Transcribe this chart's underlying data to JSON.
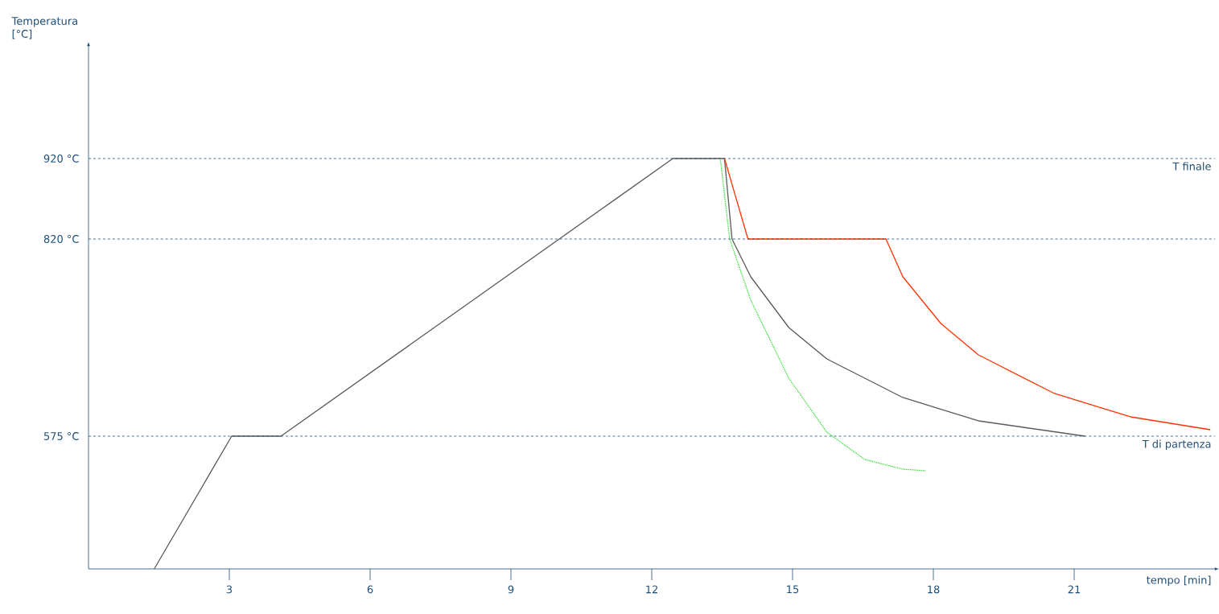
{
  "chart_data": {
    "type": "line",
    "xlabel": "tempo [min]",
    "ylabel": "Temperatura [°C]",
    "xlim": [
      0,
      24
    ],
    "ylim": [
      410,
      1060
    ],
    "xticks": [
      3,
      6,
      9,
      12,
      15,
      18,
      21
    ],
    "yticks": [
      {
        "value": 575,
        "label": "575 °C"
      },
      {
        "value": 820,
        "label": "820 °C"
      },
      {
        "value": 920,
        "label": "920 °C"
      }
    ],
    "ref_lines": [
      {
        "axis": "y",
        "value": 920,
        "label": "T finale",
        "color": "#1f4e79",
        "line_style": "dashed"
      },
      {
        "axis": "y",
        "value": 820,
        "label": null,
        "color": "#1f4e79",
        "line_style": "dashed"
      },
      {
        "axis": "y",
        "value": 575,
        "label": "T di partenza",
        "color": "#1f4e79",
        "line_style": "dashed"
      }
    ],
    "series": [
      {
        "color": "#595959",
        "line_style": "solid",
        "x": [
          1.4,
          3.05,
          4.1,
          12.45,
          13.55,
          13.71,
          14.11,
          14.92,
          15.73,
          17.35,
          18.96,
          21.23
        ],
        "values": [
          410,
          575,
          575,
          920,
          920,
          820,
          773,
          710,
          671,
          623,
          594,
          575
        ]
      },
      {
        "color": "#ff3300",
        "line_style": "solid",
        "x": [
          13.55,
          14.05,
          16.99,
          17.35,
          18.16,
          18.96,
          20.58,
          22.2,
          23.9
        ],
        "values": [
          920,
          820,
          820,
          773,
          715,
          676,
          628,
          599,
          583
        ]
      },
      {
        "color": "#33dd33",
        "line_style": "dotted",
        "x": [
          13.46,
          13.66,
          14.11,
          14.92,
          15.73,
          16.54,
          17.35,
          17.83
        ],
        "values": [
          920,
          820,
          744,
          647,
          580,
          546,
          534,
          532
        ]
      }
    ]
  }
}
